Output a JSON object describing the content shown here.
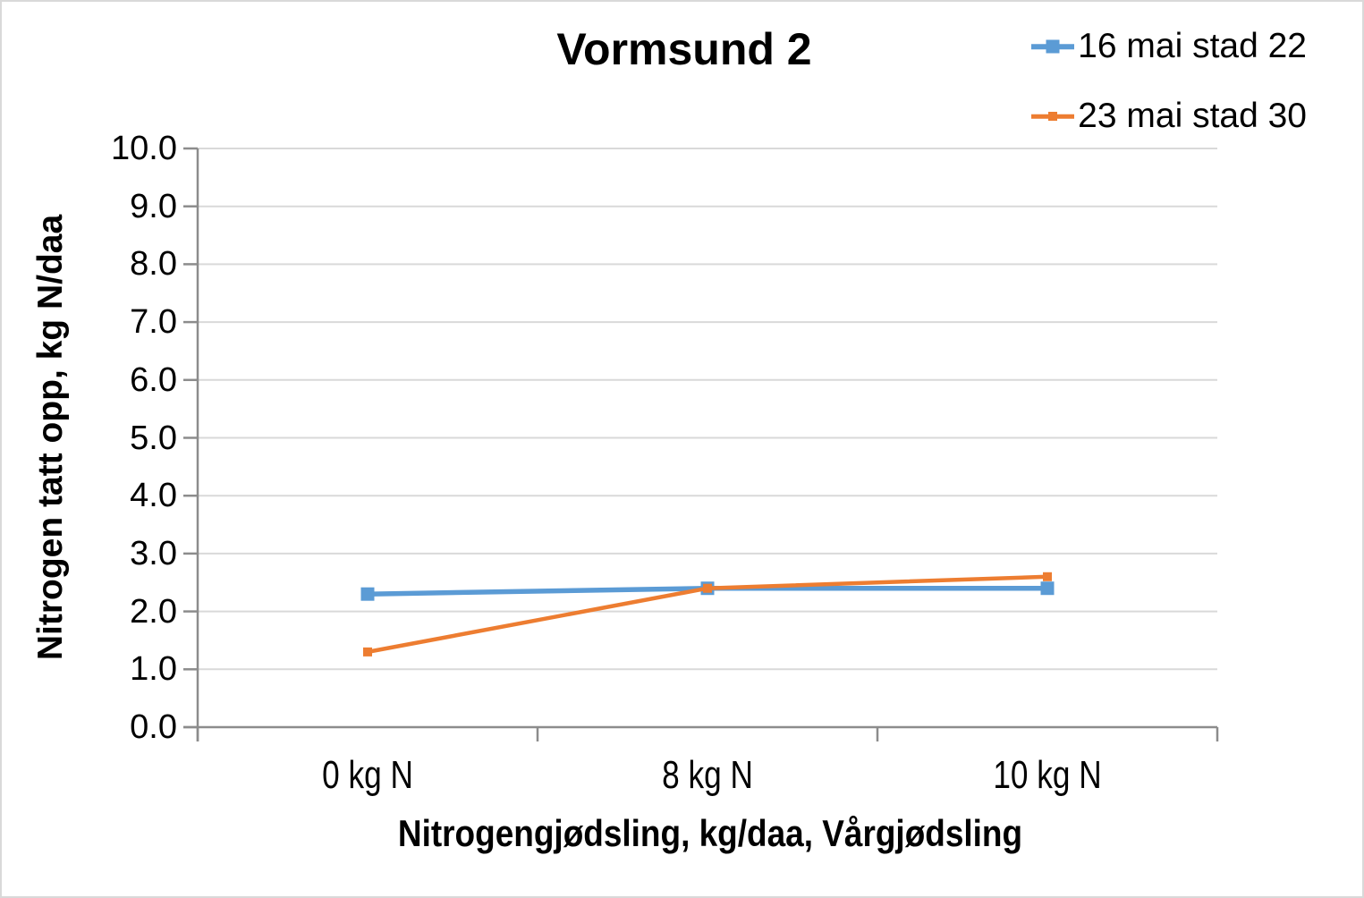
{
  "colors": {
    "background": "#FFFFFF",
    "frame_border": "#D9D9D9",
    "series_blue": "#5B9BD5",
    "series_orange": "#ED7D31"
  },
  "chart_data": {
    "type": "line",
    "title": "Vormsund 2",
    "xlabel": "Nitrogengjødsling, kg/daa, Vårgjødsling",
    "ylabel": "Nitrogen tatt opp, kg N/daa",
    "categories": [
      "0 kg N",
      "8 kg N",
      "10 kg N"
    ],
    "series": [
      {
        "name": "16 mai stad 22",
        "values": [
          2.3,
          2.4,
          2.4
        ],
        "color": "#5B9BD5",
        "marker": "square",
        "marker_size": 15,
        "line_width": 5.5
      },
      {
        "name": "23 mai stad 30",
        "values": [
          1.3,
          2.4,
          2.6
        ],
        "color": "#ED7D31",
        "marker": "square",
        "marker_size": 10,
        "line_width": 4.5
      }
    ],
    "ylim": [
      0,
      10
    ],
    "ytick_step": 1,
    "ytick_labels": [
      "0.0",
      "1.0",
      "2.0",
      "3.0",
      "4.0",
      "5.0",
      "6.0",
      "7.0",
      "8.0",
      "9.0",
      "10.0"
    ],
    "grid": "horizontal-only",
    "gridline_color": "#D9D9D9",
    "axis_color": "#8C8C8C",
    "legend_position": "top-right"
  }
}
